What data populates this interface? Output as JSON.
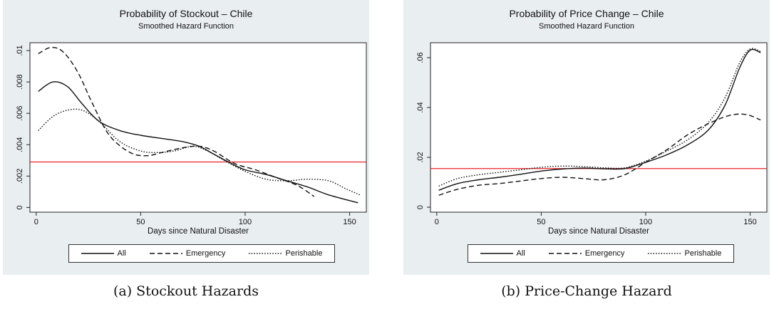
{
  "chart_data": [
    {
      "type": "line",
      "title": "Probability of Stockout – Chile",
      "subtitle": "Smoothed Hazard Function",
      "xlabel": "Days since Natural Disaster",
      "ylabel": "",
      "xlim": [
        -3,
        158
      ],
      "ylim": [
        -0.0003,
        0.0105
      ],
      "x_ticks": [
        0,
        50,
        100,
        150
      ],
      "y_ticks": [
        0,
        0.002,
        0.004,
        0.006,
        0.008,
        0.01
      ],
      "y_tick_labels": [
        "0",
        ".002",
        ".004",
        ".006",
        ".008",
        ".01"
      ],
      "grid": false,
      "legend_position": "bottom",
      "reference_line": {
        "y": 0.0029,
        "color": "#e8232a"
      },
      "series": [
        {
          "name": "All",
          "style": "solid",
          "points": [
            [
              1,
              0.0074
            ],
            [
              8,
              0.008
            ],
            [
              15,
              0.0077
            ],
            [
              22,
              0.0066
            ],
            [
              30,
              0.0055
            ],
            [
              40,
              0.0049
            ],
            [
              50,
              0.0046
            ],
            [
              60,
              0.0044
            ],
            [
              70,
              0.0042
            ],
            [
              78,
              0.0039
            ],
            [
              85,
              0.0034
            ],
            [
              92,
              0.0029
            ],
            [
              100,
              0.0024
            ],
            [
              110,
              0.0021
            ],
            [
              120,
              0.0017
            ],
            [
              130,
              0.0013
            ],
            [
              140,
              0.0008
            ],
            [
              154,
              0.0003
            ]
          ]
        },
        {
          "name": "Emergency",
          "style": "dashed",
          "points": [
            [
              1,
              0.0098
            ],
            [
              7,
              0.0102
            ],
            [
              13,
              0.0099
            ],
            [
              20,
              0.0086
            ],
            [
              27,
              0.0066
            ],
            [
              35,
              0.0046
            ],
            [
              45,
              0.0035
            ],
            [
              53,
              0.0033
            ],
            [
              60,
              0.0035
            ],
            [
              70,
              0.0038
            ],
            [
              78,
              0.0039
            ],
            [
              85,
              0.0036
            ],
            [
              95,
              0.0028
            ],
            [
              105,
              0.0024
            ],
            [
              115,
              0.0019
            ],
            [
              125,
              0.0014
            ],
            [
              133,
              0.0007
            ]
          ]
        },
        {
          "name": "Perishable",
          "style": "dotted",
          "points": [
            [
              1,
              0.0049
            ],
            [
              8,
              0.0058
            ],
            [
              15,
              0.0062
            ],
            [
              22,
              0.0062
            ],
            [
              30,
              0.0055
            ],
            [
              40,
              0.0042
            ],
            [
              50,
              0.0036
            ],
            [
              58,
              0.0035
            ],
            [
              66,
              0.0036
            ],
            [
              75,
              0.0039
            ],
            [
              82,
              0.0036
            ],
            [
              90,
              0.003
            ],
            [
              100,
              0.0023
            ],
            [
              110,
              0.0018
            ],
            [
              120,
              0.0017
            ],
            [
              130,
              0.0018
            ],
            [
              140,
              0.0017
            ],
            [
              148,
              0.0012
            ],
            [
              155,
              0.0008
            ]
          ]
        }
      ]
    },
    {
      "type": "line",
      "title": "Probability of Price Change – Chile",
      "subtitle": "Smoothed Hazard Function",
      "xlabel": "Days since Natural Disaster",
      "ylabel": "",
      "xlim": [
        -3,
        158
      ],
      "ylim": [
        -0.002,
        0.066
      ],
      "x_ticks": [
        0,
        50,
        100,
        150
      ],
      "y_ticks": [
        0,
        0.02,
        0.04,
        0.06
      ],
      "y_tick_labels": [
        "0",
        ".02",
        ".04",
        ".06"
      ],
      "grid": false,
      "legend_position": "bottom",
      "reference_line": {
        "y": 0.0155,
        "color": "#e8232a"
      },
      "series": [
        {
          "name": "All",
          "style": "solid",
          "points": [
            [
              1,
              0.0068
            ],
            [
              10,
              0.0095
            ],
            [
              20,
              0.011
            ],
            [
              30,
              0.012
            ],
            [
              40,
              0.0132
            ],
            [
              50,
              0.0145
            ],
            [
              60,
              0.0153
            ],
            [
              70,
              0.0157
            ],
            [
              80,
              0.0154
            ],
            [
              90,
              0.0155
            ],
            [
              100,
              0.018
            ],
            [
              110,
              0.021
            ],
            [
              120,
              0.025
            ],
            [
              130,
              0.031
            ],
            [
              138,
              0.041
            ],
            [
              145,
              0.056
            ],
            [
              150,
              0.063
            ],
            [
              155,
              0.062
            ]
          ]
        },
        {
          "name": "Emergency",
          "style": "dashed",
          "points": [
            [
              1,
              0.0048
            ],
            [
              10,
              0.0072
            ],
            [
              20,
              0.0088
            ],
            [
              30,
              0.0095
            ],
            [
              40,
              0.0105
            ],
            [
              50,
              0.0115
            ],
            [
              60,
              0.012
            ],
            [
              70,
              0.0115
            ],
            [
              80,
              0.011
            ],
            [
              90,
              0.013
            ],
            [
              100,
              0.018
            ],
            [
              110,
              0.023
            ],
            [
              120,
              0.029
            ],
            [
              130,
              0.0335
            ],
            [
              140,
              0.0368
            ],
            [
              148,
              0.0372
            ],
            [
              155,
              0.035
            ]
          ]
        },
        {
          "name": "Perishable",
          "style": "dotted",
          "points": [
            [
              1,
              0.0085
            ],
            [
              10,
              0.0115
            ],
            [
              20,
              0.013
            ],
            [
              30,
              0.014
            ],
            [
              40,
              0.015
            ],
            [
              50,
              0.016
            ],
            [
              60,
              0.0165
            ],
            [
              70,
              0.0163
            ],
            [
              80,
              0.0158
            ],
            [
              90,
              0.0158
            ],
            [
              100,
              0.0185
            ],
            [
              110,
              0.0225
            ],
            [
              120,
              0.027
            ],
            [
              130,
              0.034
            ],
            [
              138,
              0.044
            ],
            [
              145,
              0.058
            ],
            [
              150,
              0.0635
            ],
            [
              155,
              0.0625
            ]
          ]
        }
      ]
    }
  ],
  "legend": {
    "all": "All",
    "emergency": "Emergency",
    "perishable": "Perishable"
  },
  "captions": {
    "a": "(a) Stockout Hazards",
    "b": "(b) Price-Change Hazard"
  }
}
